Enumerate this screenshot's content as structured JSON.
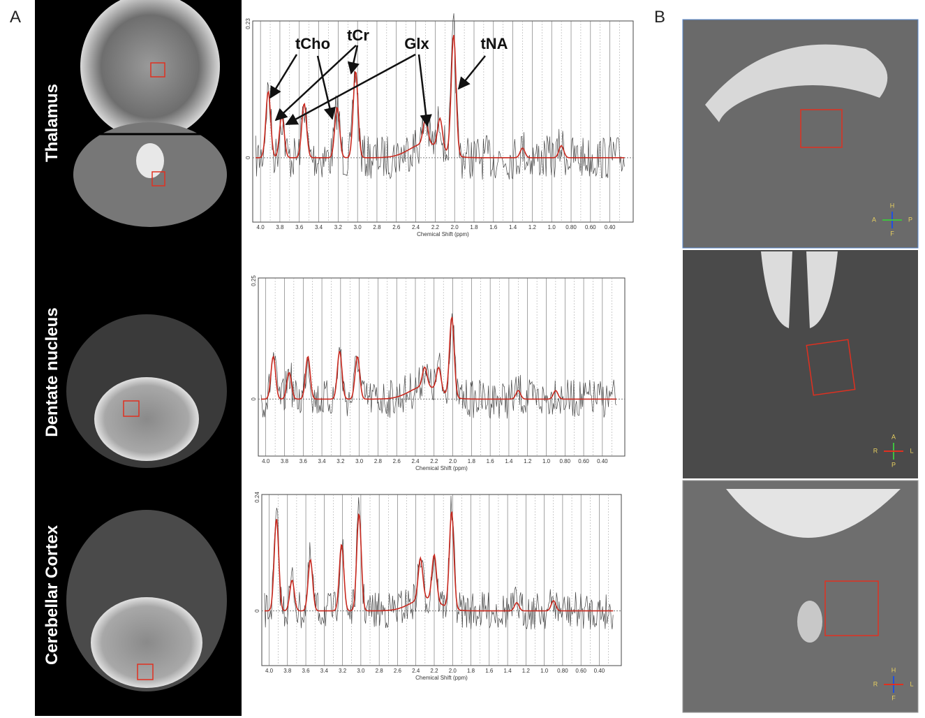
{
  "label_a": "A",
  "label_b": "B",
  "regions": [
    {
      "name": "Thalamus",
      "spectrum": {
        "y_top": "0.23",
        "y_zero": "0",
        "x_label": "Chemical Shift (ppm)",
        "x_ticks": [
          "4.0",
          "3.8",
          "3.6",
          "3.4",
          "3.2",
          "3.0",
          "2.8",
          "2.6",
          "2.4",
          "2.2",
          "2.0",
          "1.8",
          "1.6",
          "1.4",
          "1.2",
          "1.0",
          "0.80",
          "0.60",
          "0.40"
        ]
      }
    },
    {
      "name": "Dentate nucleus",
      "spectrum": {
        "y_top": "0.25",
        "y_zero": "0",
        "x_label": "Chemical Shift (ppm)",
        "x_ticks": [
          "4.0",
          "3.8",
          "3.6",
          "3.4",
          "3.2",
          "3.0",
          "2.8",
          "2.6",
          "2.4",
          "2.2",
          "2.0",
          "1.8",
          "1.6",
          "1.4",
          "1.2",
          "1.0",
          "0.80",
          "0.60",
          "0.40"
        ]
      }
    },
    {
      "name": "Cerebellar Cortex",
      "spectrum": {
        "y_top": "0.24",
        "y_zero": "0",
        "x_label": "Chemical Shift (ppm)",
        "x_ticks": [
          "4.0",
          "3.8",
          "3.6",
          "3.4",
          "3.2",
          "3.0",
          "2.8",
          "2.6",
          "2.4",
          "2.2",
          "2.0",
          "1.8",
          "1.6",
          "1.4",
          "1.2",
          "1.0",
          "0.80",
          "0.60",
          "0.40"
        ]
      }
    }
  ],
  "annotations": [
    "tCho",
    "tCr",
    "Glx",
    "tNA"
  ],
  "orientation": [
    {
      "top": "H",
      "left": "A",
      "right": "P",
      "bottom": "F"
    },
    {
      "top": "A",
      "left": "R",
      "right": "L",
      "bottom": "P"
    },
    {
      "top": "H",
      "left": "R",
      "right": "L",
      "bottom": "F"
    }
  ]
}
